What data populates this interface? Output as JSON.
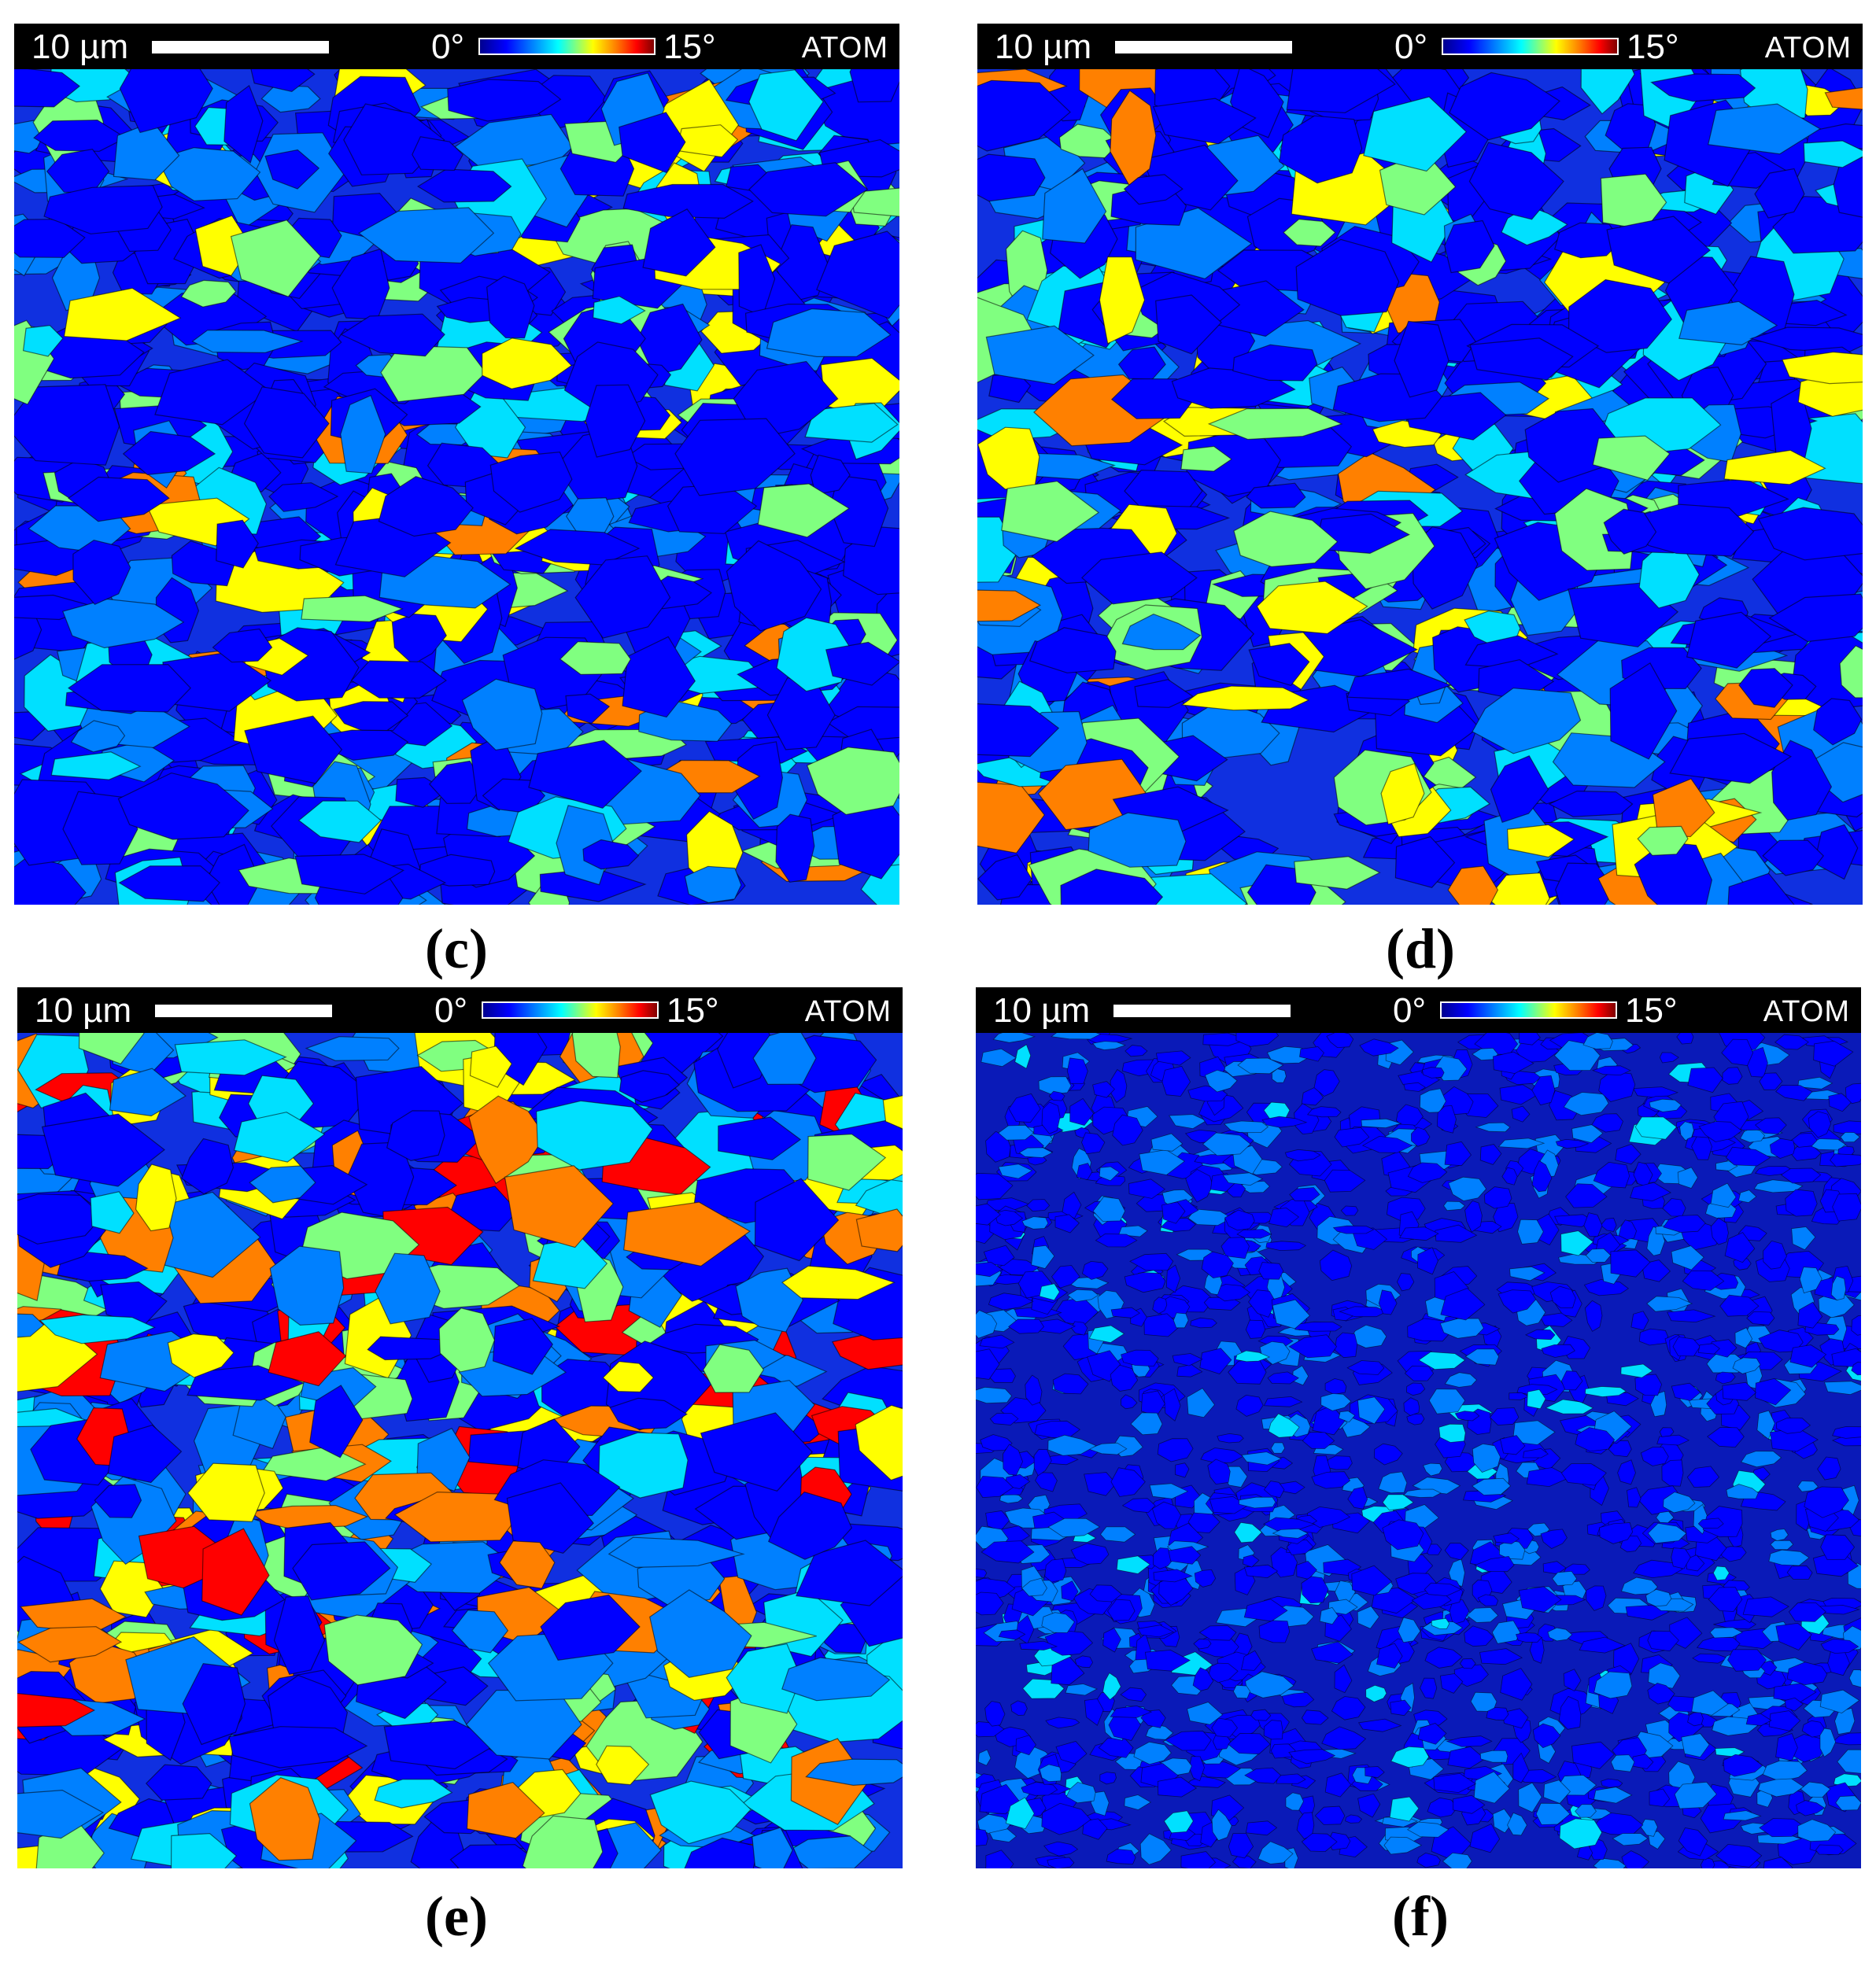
{
  "panels": [
    {
      "id": "c",
      "label": "(c)",
      "scale": "10 µm",
      "cmin": "0°",
      "cmax": "15°",
      "brand": "ATOM",
      "level": 0.3
    },
    {
      "id": "d",
      "label": "(d)",
      "scale": "10 µm",
      "cmin": "0°",
      "cmax": "15°",
      "brand": "ATOM",
      "level": 0.35
    },
    {
      "id": "e",
      "label": "(e)",
      "scale": "10 µm",
      "cmin": "0°",
      "cmax": "15°",
      "brand": "ATOM",
      "level": 0.5
    },
    {
      "id": "f",
      "label": "(f)",
      "scale": "10 µm",
      "cmin": "0°",
      "cmax": "15°",
      "brand": "ATOM",
      "level": 0.05
    }
  ],
  "colors": {
    "background_low": "#0000c8",
    "mid": "#00b4ff",
    "high": "#ff2000",
    "max": "#8b0000",
    "boundary": "#000000"
  }
}
